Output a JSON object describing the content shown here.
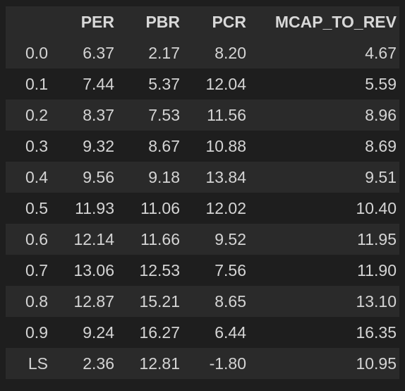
{
  "table": {
    "columns": [
      "",
      "PER",
      "PBR",
      "PCR",
      "MCAP_TO_REV"
    ],
    "rows": [
      {
        "index": "0.0",
        "PER": "6.37",
        "PBR": "2.17",
        "PCR": "8.20",
        "MCAP_TO_REV": "4.67"
      },
      {
        "index": "0.1",
        "PER": "7.44",
        "PBR": "5.37",
        "PCR": "12.04",
        "MCAP_TO_REV": "5.59"
      },
      {
        "index": "0.2",
        "PER": "8.37",
        "PBR": "7.53",
        "PCR": "11.56",
        "MCAP_TO_REV": "8.96"
      },
      {
        "index": "0.3",
        "PER": "9.32",
        "PBR": "8.67",
        "PCR": "10.88",
        "MCAP_TO_REV": "8.69"
      },
      {
        "index": "0.4",
        "PER": "9.56",
        "PBR": "9.18",
        "PCR": "13.84",
        "MCAP_TO_REV": "9.51"
      },
      {
        "index": "0.5",
        "PER": "11.93",
        "PBR": "11.06",
        "PCR": "12.02",
        "MCAP_TO_REV": "10.40"
      },
      {
        "index": "0.6",
        "PER": "12.14",
        "PBR": "11.66",
        "PCR": "9.52",
        "MCAP_TO_REV": "11.95"
      },
      {
        "index": "0.7",
        "PER": "13.06",
        "PBR": "12.53",
        "PCR": "7.56",
        "MCAP_TO_REV": "11.90"
      },
      {
        "index": "0.8",
        "PER": "12.87",
        "PBR": "15.21",
        "PCR": "8.65",
        "MCAP_TO_REV": "13.10"
      },
      {
        "index": "0.9",
        "PER": "9.24",
        "PBR": "16.27",
        "PCR": "6.44",
        "MCAP_TO_REV": "16.35"
      },
      {
        "index": "LS",
        "PER": "2.36",
        "PBR": "12.81",
        "PCR": "-1.80",
        "MCAP_TO_REV": "10.95"
      }
    ]
  },
  "colors": {
    "background": "#1e1e1e",
    "stripe": "#2a2a2a",
    "text": "#d4d4d4"
  }
}
